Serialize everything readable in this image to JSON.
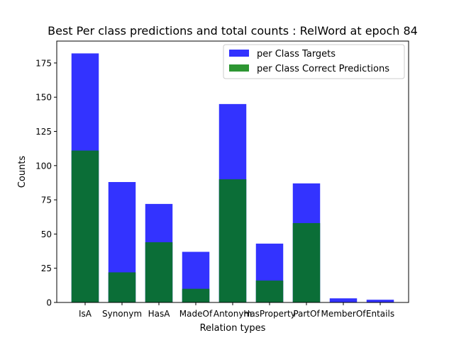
{
  "chart_data": {
    "type": "bar",
    "stacked": "overlay",
    "title": "Best Per class predictions and total counts : RelWord at epoch 84",
    "xlabel": "Relation types",
    "ylabel": "Counts",
    "ylim": [
      0,
      191
    ],
    "yticks": [
      0,
      25,
      50,
      75,
      100,
      125,
      150,
      175
    ],
    "categories": [
      "IsA",
      "Synonym",
      "HasA",
      "MadeOf",
      "Antonym",
      "HasProperty",
      "PartOf",
      "MemberOf",
      "Entails"
    ],
    "series": [
      {
        "name": "per Class Targets",
        "color": "#3333ff",
        "values": [
          182,
          88,
          72,
          37,
          145,
          43,
          87,
          3,
          2
        ]
      },
      {
        "name": "per Class Correct Predictions",
        "color": "#0b6e37",
        "values": [
          111,
          22,
          44,
          10,
          90,
          16,
          58,
          0,
          0
        ]
      }
    ],
    "legend": [
      {
        "label": "per Class Targets",
        "color": "#3333ff"
      },
      {
        "label": "per Class Correct Predictions",
        "color": "#2d9632"
      }
    ],
    "legend_position": "top-right"
  }
}
